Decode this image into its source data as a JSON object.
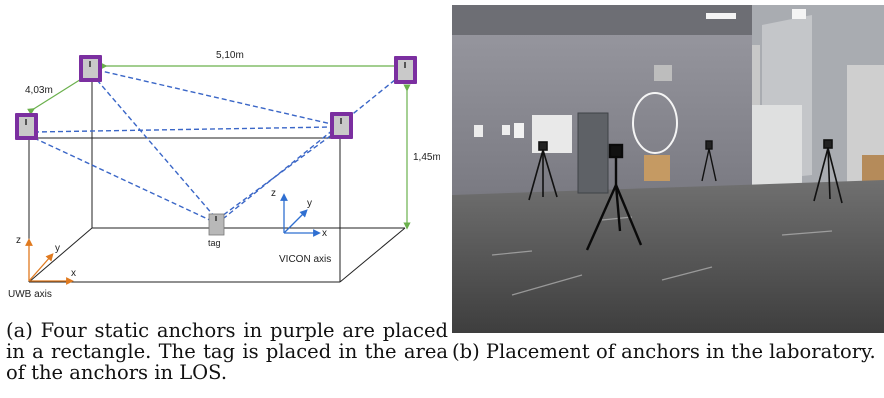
{
  "figure_a": {
    "distance_long": "5,10m",
    "distance_short": "4,03m",
    "height": "1,45m",
    "tag_label": "tag",
    "vicon_axis_label": "VICON axis",
    "uwb_axis_label": "UWB axis",
    "axis_x": "x",
    "axis_y": "y",
    "axis_z": "z",
    "colors": {
      "anchor_frame": "#7b2fa0",
      "los_line": "#3a66c7",
      "dimension_line": "#6ab04c",
      "vicon_axis": "#2f6fd1",
      "uwb_axis": "#e07a1f"
    }
  },
  "figure_b": {
    "description_icon": "photo-of-laboratory"
  },
  "captions": {
    "a": "(a) Four static anchors in purple are placed in a rectangle. The tag is placed in the area of the anchors in LOS.",
    "b": "(b) Placement of anchors in the laboratory."
  }
}
